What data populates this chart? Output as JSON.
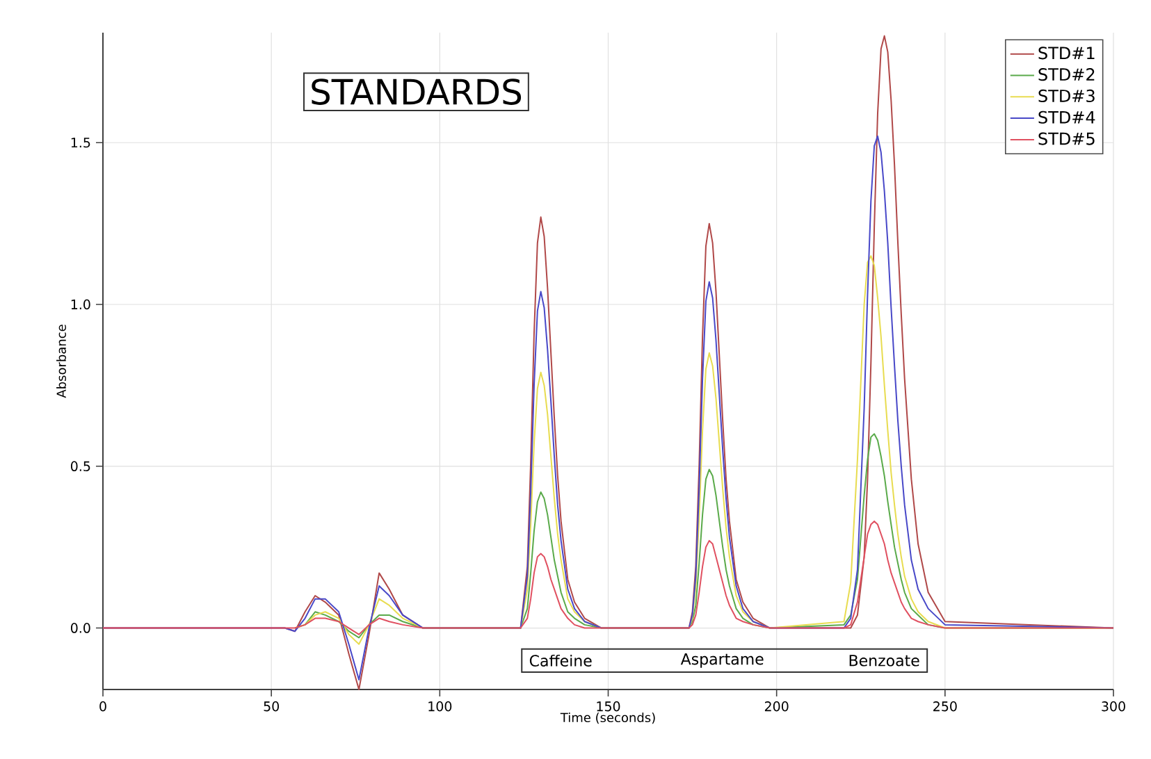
{
  "chart_data": {
    "type": "line",
    "xlabel": "Time (seconds)",
    "ylabel": "Absorbance",
    "x": [
      0,
      54,
      57,
      60,
      63,
      66,
      70,
      73,
      76,
      79,
      82,
      85,
      89,
      95,
      124,
      126,
      127,
      128,
      129,
      130,
      131,
      132,
      133,
      134,
      135,
      136,
      138,
      140,
      143,
      148,
      172,
      174,
      175,
      176,
      177,
      178,
      179,
      180,
      181,
      182,
      183,
      184,
      185,
      186,
      188,
      190,
      193,
      198,
      220,
      222,
      224,
      226,
      227,
      228,
      229,
      230,
      231,
      232,
      233,
      234,
      235,
      236,
      237,
      238,
      240,
      242,
      245,
      250,
      300
    ],
    "series": [
      {
        "name": "STD#1",
        "color": "#b04848",
        "values": [
          0,
          0,
          -0.01,
          0.05,
          0.1,
          0.08,
          0.04,
          -0.08,
          -0.19,
          -0.02,
          0.17,
          0.12,
          0.04,
          0,
          0,
          0.19,
          0.51,
          0.91,
          1.19,
          1.27,
          1.21,
          1.05,
          0.85,
          0.65,
          0.47,
          0.33,
          0.15,
          0.08,
          0.03,
          0,
          0,
          0,
          0.05,
          0.19,
          0.5,
          0.9,
          1.18,
          1.25,
          1.19,
          1.04,
          0.84,
          0.64,
          0.46,
          0.33,
          0.15,
          0.08,
          0.03,
          0,
          0,
          0,
          0.04,
          0.22,
          0.46,
          0.82,
          1.24,
          1.59,
          1.79,
          1.83,
          1.78,
          1.63,
          1.43,
          1.19,
          0.97,
          0.77,
          0.46,
          0.26,
          0.11,
          0.02,
          0
        ]
      },
      {
        "name": "STD#2",
        "color": "#5aaa4a",
        "values": [
          null,
          null,
          0,
          0.01,
          0.05,
          0.04,
          0.02,
          -0.01,
          -0.03,
          0.01,
          0.04,
          0.04,
          0.02,
          0,
          0,
          0.06,
          0.17,
          0.3,
          0.39,
          0.42,
          0.4,
          0.35,
          0.28,
          0.21,
          0.16,
          0.11,
          0.05,
          0.03,
          0.01,
          0,
          0,
          0,
          0.02,
          0.07,
          0.2,
          0.35,
          0.46,
          0.49,
          0.47,
          0.41,
          0.33,
          0.25,
          0.18,
          0.13,
          0.06,
          0.03,
          0.01,
          0,
          0.01,
          0.04,
          0.15,
          0.41,
          0.52,
          0.59,
          0.6,
          0.58,
          0.53,
          0.47,
          0.39,
          0.32,
          0.25,
          0.2,
          0.15,
          0.11,
          0.06,
          0.04,
          0.01,
          0,
          0
        ]
      },
      {
        "name": "STD#3",
        "color": "#e8dc50",
        "values": [
          null,
          null,
          0,
          0.01,
          0.04,
          0.05,
          0.03,
          -0.02,
          -0.05,
          0.01,
          0.09,
          0.07,
          0.03,
          0,
          0,
          0.12,
          0.32,
          0.57,
          0.74,
          0.79,
          0.75,
          0.66,
          0.53,
          0.4,
          0.29,
          0.21,
          0.09,
          0.05,
          0.02,
          0,
          0,
          0,
          0.03,
          0.13,
          0.34,
          0.61,
          0.8,
          0.85,
          0.81,
          0.71,
          0.57,
          0.43,
          0.31,
          0.22,
          0.1,
          0.05,
          0.02,
          0,
          0.02,
          0.14,
          0.52,
          1.0,
          1.13,
          1.15,
          1.12,
          1.02,
          0.9,
          0.75,
          0.61,
          0.48,
          0.38,
          0.29,
          0.22,
          0.16,
          0.09,
          0.05,
          0.02,
          0,
          0
        ]
      },
      {
        "name": "STD#4",
        "color": "#4848c8",
        "values": [
          0,
          0,
          -0.01,
          0.03,
          0.09,
          0.09,
          0.05,
          -0.05,
          -0.16,
          0.0,
          0.13,
          0.1,
          0.04,
          0,
          0,
          0.16,
          0.42,
          0.75,
          0.98,
          1.04,
          0.99,
          0.86,
          0.7,
          0.53,
          0.38,
          0.27,
          0.12,
          0.06,
          0.02,
          0,
          0,
          0,
          0.04,
          0.16,
          0.43,
          0.77,
          1.01,
          1.07,
          1.02,
          0.89,
          0.72,
          0.55,
          0.4,
          0.28,
          0.13,
          0.06,
          0.02,
          0,
          0,
          0.03,
          0.18,
          0.68,
          1.03,
          1.32,
          1.49,
          1.52,
          1.47,
          1.35,
          1.19,
          0.99,
          0.81,
          0.64,
          0.5,
          0.38,
          0.21,
          0.12,
          0.06,
          0.01,
          0
        ]
      },
      {
        "name": "STD#5",
        "color": "#e05060",
        "values": [
          0,
          0,
          0,
          0.01,
          0.03,
          0.03,
          0.02,
          0.0,
          -0.02,
          0.01,
          0.03,
          0.02,
          0.01,
          0,
          0,
          0.03,
          0.09,
          0.17,
          0.22,
          0.23,
          0.22,
          0.19,
          0.15,
          0.12,
          0.09,
          0.06,
          0.03,
          0.01,
          0,
          0,
          0,
          0,
          0.01,
          0.04,
          0.11,
          0.19,
          0.25,
          0.27,
          0.26,
          0.22,
          0.18,
          0.14,
          0.1,
          0.07,
          0.03,
          0.02,
          0.01,
          0,
          0,
          0.01,
          0.08,
          0.22,
          0.29,
          0.32,
          0.33,
          0.32,
          0.29,
          0.26,
          0.21,
          0.17,
          0.14,
          0.11,
          0.08,
          0.06,
          0.03,
          0.02,
          0.01,
          0,
          0
        ]
      }
    ],
    "xlim": [
      0,
      300
    ],
    "ylim": [
      -0.19,
      1.84
    ],
    "xticks": [
      0,
      50,
      100,
      150,
      200,
      250,
      300
    ],
    "yticks": [
      {
        "value": 0,
        "label": "0.0"
      },
      {
        "value": 0.5,
        "label": "0.5"
      },
      {
        "value": 1,
        "label": "1.0"
      },
      {
        "value": 1.5,
        "label": "1.5"
      }
    ],
    "grid": true,
    "legend": "top right",
    "marker": "none",
    "line_style": "solid",
    "annotations": [
      "STANDARDS",
      "Caffeine",
      "Aspartame",
      "Benzoate"
    ]
  }
}
